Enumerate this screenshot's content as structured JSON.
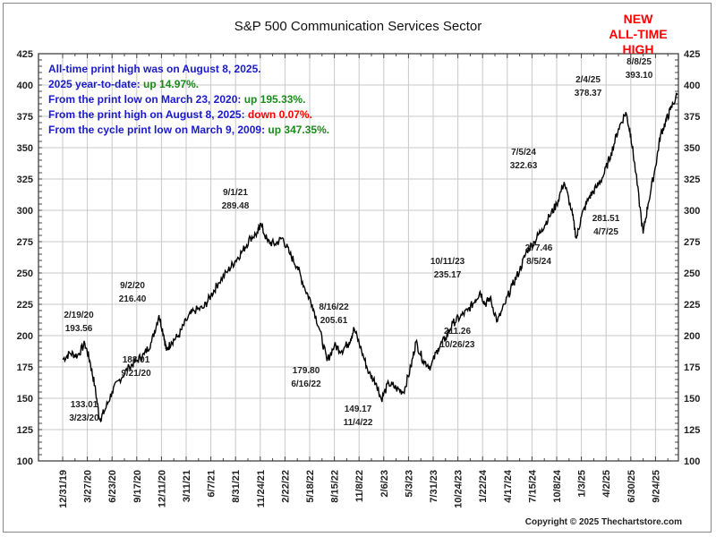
{
  "chart_data": {
    "type": "line",
    "title": "S&P 500 Communication Services Sector",
    "xlabel": "",
    "ylabel": "",
    "ylim": [
      100,
      425
    ],
    "y_ticks": [
      100,
      125,
      150,
      175,
      200,
      225,
      250,
      275,
      300,
      325,
      350,
      375,
      400,
      425
    ],
    "x_tick_labels": [
      "12/31/19",
      "3/27/20",
      "6/23/20",
      "9/17/20",
      "12/11/20",
      "3/11/21",
      "6/7/21",
      "8/31/21",
      "11/24/21",
      "2/22/22",
      "5/18/22",
      "8/15/22",
      "11/8/22",
      "2/6/23",
      "5/3/23",
      "7/31/23",
      "10/24/23",
      "1/22/24",
      "4/17/24",
      "7/15/24",
      "10/8/24",
      "1/3/25",
      "4/2/25",
      "6/30/25",
      "9/24/25"
    ],
    "grid": true,
    "series": [
      {
        "name": "S&P 500 Communication Services Sector",
        "color": "#000000",
        "points": [
          {
            "x": 0.0,
            "y": 181
          },
          {
            "x": 0.3,
            "y": 186
          },
          {
            "x": 0.6,
            "y": 184
          },
          {
            "x": 0.9,
            "y": 193.56
          },
          {
            "x": 1.1,
            "y": 180
          },
          {
            "x": 1.3,
            "y": 160
          },
          {
            "x": 1.5,
            "y": 133.01
          },
          {
            "x": 1.7,
            "y": 140
          },
          {
            "x": 2.0,
            "y": 155
          },
          {
            "x": 2.3,
            "y": 165
          },
          {
            "x": 2.7,
            "y": 175
          },
          {
            "x": 3.0,
            "y": 180
          },
          {
            "x": 3.3,
            "y": 185
          },
          {
            "x": 3.6,
            "y": 195
          },
          {
            "x": 3.9,
            "y": 216.4
          },
          {
            "x": 4.1,
            "y": 200
          },
          {
            "x": 4.2,
            "y": 188.01
          },
          {
            "x": 4.4,
            "y": 195
          },
          {
            "x": 4.7,
            "y": 200
          },
          {
            "x": 5.0,
            "y": 212
          },
          {
            "x": 5.3,
            "y": 220
          },
          {
            "x": 5.7,
            "y": 222
          },
          {
            "x": 6.0,
            "y": 232
          },
          {
            "x": 6.3,
            "y": 242
          },
          {
            "x": 6.7,
            "y": 252
          },
          {
            "x": 7.0,
            "y": 260
          },
          {
            "x": 7.3,
            "y": 268
          },
          {
            "x": 7.6,
            "y": 278
          },
          {
            "x": 7.9,
            "y": 282
          },
          {
            "x": 8.0,
            "y": 289.48
          },
          {
            "x": 8.3,
            "y": 275
          },
          {
            "x": 8.6,
            "y": 273
          },
          {
            "x": 8.9,
            "y": 278
          },
          {
            "x": 9.2,
            "y": 265
          },
          {
            "x": 9.5,
            "y": 255
          },
          {
            "x": 9.8,
            "y": 238
          },
          {
            "x": 10.1,
            "y": 225
          },
          {
            "x": 10.4,
            "y": 205
          },
          {
            "x": 10.7,
            "y": 179.8
          },
          {
            "x": 11.0,
            "y": 192
          },
          {
            "x": 11.3,
            "y": 188
          },
          {
            "x": 11.6,
            "y": 195
          },
          {
            "x": 11.8,
            "y": 205.61
          },
          {
            "x": 12.1,
            "y": 188
          },
          {
            "x": 12.4,
            "y": 170
          },
          {
            "x": 12.7,
            "y": 162
          },
          {
            "x": 12.9,
            "y": 149.17
          },
          {
            "x": 13.2,
            "y": 162
          },
          {
            "x": 13.5,
            "y": 158
          },
          {
            "x": 13.8,
            "y": 155
          },
          {
            "x": 14.1,
            "y": 175
          },
          {
            "x": 14.3,
            "y": 195
          },
          {
            "x": 14.6,
            "y": 180
          },
          {
            "x": 14.9,
            "y": 175
          },
          {
            "x": 15.2,
            "y": 190
          },
          {
            "x": 15.5,
            "y": 198
          },
          {
            "x": 15.8,
            "y": 210
          },
          {
            "x": 16.1,
            "y": 215
          },
          {
            "x": 16.4,
            "y": 220
          },
          {
            "x": 16.7,
            "y": 228
          },
          {
            "x": 16.9,
            "y": 235.17
          },
          {
            "x": 17.1,
            "y": 225
          },
          {
            "x": 17.3,
            "y": 230
          },
          {
            "x": 17.6,
            "y": 211.26
          },
          {
            "x": 17.9,
            "y": 225
          },
          {
            "x": 18.2,
            "y": 240
          },
          {
            "x": 18.5,
            "y": 252
          },
          {
            "x": 18.8,
            "y": 268
          },
          {
            "x": 19.1,
            "y": 275
          },
          {
            "x": 19.4,
            "y": 285
          },
          {
            "x": 19.7,
            "y": 295
          },
          {
            "x": 20.0,
            "y": 305
          },
          {
            "x": 20.3,
            "y": 322.63
          },
          {
            "x": 20.6,
            "y": 300
          },
          {
            "x": 20.8,
            "y": 277.46
          },
          {
            "x": 21.0,
            "y": 295
          },
          {
            "x": 21.3,
            "y": 310
          },
          {
            "x": 21.6,
            "y": 318
          },
          {
            "x": 21.9,
            "y": 328
          },
          {
            "x": 22.2,
            "y": 345
          },
          {
            "x": 22.5,
            "y": 365
          },
          {
            "x": 22.8,
            "y": 378.37
          },
          {
            "x": 23.0,
            "y": 360
          },
          {
            "x": 23.2,
            "y": 330
          },
          {
            "x": 23.5,
            "y": 281.51
          },
          {
            "x": 23.7,
            "y": 305
          },
          {
            "x": 24.0,
            "y": 335
          },
          {
            "x": 24.2,
            "y": 360
          },
          {
            "x": 24.4,
            "y": 370
          },
          {
            "x": 24.6,
            "y": 380
          },
          {
            "x": 24.9,
            "y": 393.1
          }
        ]
      }
    ],
    "annotations": [
      {
        "date": "2/19/20",
        "value": "193.56",
        "position": "above"
      },
      {
        "date": "3/23/20",
        "value": "133.01",
        "position": "below"
      },
      {
        "date": "9/2/20",
        "value": "216.40",
        "position": "above"
      },
      {
        "date": "9/21/20",
        "value": "188.01",
        "position": "below"
      },
      {
        "date": "9/1/21",
        "value": "289.48",
        "position": "above"
      },
      {
        "date": "6/16/22",
        "value": "179.80",
        "position": "below"
      },
      {
        "date": "8/16/22",
        "value": "205.61",
        "position": "above"
      },
      {
        "date": "11/4/22",
        "value": "149.17",
        "position": "below"
      },
      {
        "date": "10/11/23",
        "value": "235.17",
        "position": "above"
      },
      {
        "date": "10/26/23",
        "value": "211.26",
        "position": "below"
      },
      {
        "date": "7/5/24",
        "value": "322.63",
        "position": "above"
      },
      {
        "date": "8/5/24",
        "value": "277.46",
        "position": "below"
      },
      {
        "date": "2/4/25",
        "value": "378.37",
        "position": "above"
      },
      {
        "date": "4/7/25",
        "value": "281.51",
        "position": "below"
      },
      {
        "date": "8/8/25",
        "value": "393.10",
        "position": "above"
      }
    ],
    "callout": [
      "NEW",
      "ALL-TIME",
      "HIGH"
    ],
    "callout_color": "#ff0000",
    "info_lines": [
      {
        "text": "All-time print high was on August 8, 2025.",
        "highlight": "",
        "highlight_color": ""
      },
      {
        "text": "2025 year-to-date:  ",
        "highlight": "up 14.97%.",
        "highlight_color": "#1a8a1a"
      },
      {
        "text": "From the print low on March 23, 2020:  ",
        "highlight": "up 195.33%.",
        "highlight_color": "#1a8a1a"
      },
      {
        "text": "From the print high on August 8, 2025:  ",
        "highlight": "down 0.07%.",
        "highlight_color": "#ff0000"
      },
      {
        "text": "From the cycle print low on March 9, 2009:  ",
        "highlight": "up 347.35%.",
        "highlight_color": "#1a8a1a"
      }
    ],
    "info_color": "#1a1acc",
    "copyright": "Copyright © 2025 Thechartstore.com"
  }
}
